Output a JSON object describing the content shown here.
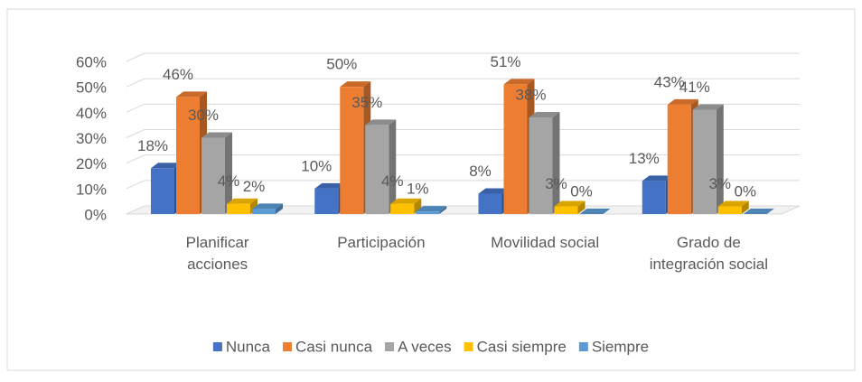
{
  "chart_data": {
    "type": "bar3d",
    "categories": [
      "Planificar acciones",
      "Participación",
      "Movilidad social",
      "Grado de integración social"
    ],
    "series": [
      {
        "name": "Nunca",
        "color": "#4472c4",
        "values": [
          18,
          10,
          8,
          13
        ],
        "value_labels": [
          "18%",
          "10%",
          "8%",
          "13%"
        ]
      },
      {
        "name": "Casi nunca",
        "color": "#ed7d31",
        "values": [
          46,
          50,
          51,
          43
        ],
        "value_labels": [
          "46%",
          "50%",
          "51%",
          "43%"
        ]
      },
      {
        "name": "A veces",
        "color": "#a5a5a5",
        "values": [
          30,
          35,
          38,
          41
        ],
        "value_labels": [
          "30%",
          "35%",
          "38%",
          "41%"
        ]
      },
      {
        "name": "Casi siempre",
        "color": "#ffc000",
        "values": [
          4,
          4,
          3,
          3
        ],
        "value_labels": [
          "4%",
          "4%",
          "3%",
          "3%"
        ]
      },
      {
        "name": "Siempre",
        "color": "#5b9bd5",
        "values": [
          2,
          1,
          0,
          0
        ],
        "value_labels": [
          "2%",
          "1%",
          "0%",
          "0%"
        ]
      }
    ],
    "ylim": [
      0,
      60
    ],
    "yticks": [
      {
        "value": 0,
        "label": "0%"
      },
      {
        "value": 10,
        "label": "10%"
      },
      {
        "value": 20,
        "label": "20%"
      },
      {
        "value": 30,
        "label": "30%"
      },
      {
        "value": 40,
        "label": "40%"
      },
      {
        "value": 50,
        "label": "50%"
      },
      {
        "value": 60,
        "label": "60%"
      }
    ],
    "grid": true,
    "legend": "bottom"
  }
}
